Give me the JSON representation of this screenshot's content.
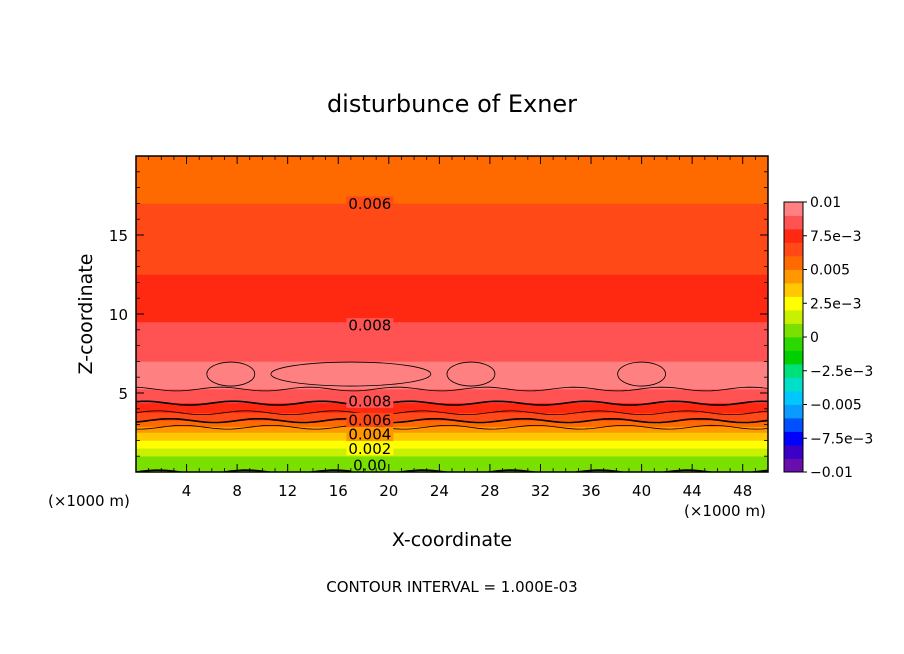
{
  "chart_data": {
    "type": "contour",
    "title": "disturbunce of Exner",
    "xlabel": "X-coordinate",
    "ylabel": "Z-coordinate",
    "x_unit": "(×1000 m)",
    "x_unit_right": "(×1000 m)",
    "xlim": [
      0,
      50
    ],
    "ylim": [
      0,
      20
    ],
    "x_ticks": [
      4,
      8,
      12,
      16,
      20,
      24,
      28,
      32,
      36,
      40,
      44,
      48
    ],
    "x_tick_labels": [
      "4",
      "8",
      "12",
      "16",
      "20",
      "24",
      "28",
      "32",
      "36",
      "40",
      "44",
      "48"
    ],
    "y_ticks": [
      5,
      10,
      15
    ],
    "y_tick_labels": [
      "5",
      "10",
      "15"
    ],
    "footer": "CONTOUR INTERVAL = 1.000E-03",
    "contour_interval": 0.001,
    "level_min": -0.01,
    "level_max": 0.01,
    "colorbar": {
      "tick_labels": [
        "0.01",
        "7.5e−3",
        "0.005",
        "2.5e−3",
        "0",
        "−2.5e−3",
        "−0.005",
        "−7.5e−3",
        "−0.01"
      ],
      "tick_values": [
        0.01,
        0.0075,
        0.005,
        0.0025,
        0,
        -0.0025,
        -0.005,
        -0.0075,
        -0.01
      ],
      "colors": [
        "#6a0dad",
        "#3a00c8",
        "#0000ff",
        "#0050ff",
        "#0a9bff",
        "#00c8ff",
        "#00e0c8",
        "#00e07a",
        "#00d000",
        "#2bd800",
        "#7ae000",
        "#c8f000",
        "#ffff00",
        "#ffc800",
        "#ff9800",
        "#ff6a00",
        "#ff4a18",
        "#ff2810",
        "#ff5252",
        "#ff8080"
      ]
    },
    "profile": [
      {
        "z": 0.0,
        "value": 0.0
      },
      {
        "z": 0.5,
        "value": 0.0002
      },
      {
        "z": 1.0,
        "value": 0.001
      },
      {
        "z": 1.5,
        "value": 0.002
      },
      {
        "z": 2.0,
        "value": 0.003
      },
      {
        "z": 2.5,
        "value": 0.004
      },
      {
        "z": 3.0,
        "value": 0.0055
      },
      {
        "z": 3.5,
        "value": 0.0065
      },
      {
        "z": 4.0,
        "value": 0.0075
      },
      {
        "z": 4.5,
        "value": 0.0082
      },
      {
        "z": 5.0,
        "value": 0.0089
      },
      {
        "z": 6.0,
        "value": 0.0093
      },
      {
        "z": 7.0,
        "value": 0.009
      },
      {
        "z": 8.0,
        "value": 0.0086
      },
      {
        "z": 9.5,
        "value": 0.008
      },
      {
        "z": 11.0,
        "value": 0.0076
      },
      {
        "z": 12.5,
        "value": 0.007
      },
      {
        "z": 14.5,
        "value": 0.0065
      },
      {
        "z": 17.0,
        "value": 0.006
      },
      {
        "z": 18.5,
        "value": 0.0055
      },
      {
        "z": 20.0,
        "value": 0.005
      }
    ],
    "labeled_contours": [
      {
        "label": "0.006",
        "value": 0.006,
        "z": 17.0,
        "label_x": 18.5
      },
      {
        "label": "0.008",
        "value": 0.008,
        "z": 9.3,
        "label_x": 18.5
      },
      {
        "label": "0.008",
        "value": 0.008,
        "z": 4.5,
        "label_x": 18.5
      },
      {
        "label": "0.006",
        "value": 0.006,
        "z": 3.3,
        "label_x": 18.5
      },
      {
        "label": "0.004",
        "value": 0.004,
        "z": 2.4,
        "label_x": 18.5
      },
      {
        "label": "0.002",
        "value": 0.002,
        "z": 1.5,
        "label_x": 18.5
      },
      {
        "label": "0.00",
        "value": 0.0,
        "z": 0.45,
        "label_x": 18.5
      }
    ],
    "maximum_cells": [
      {
        "value": 0.0093,
        "x_center": 7.5,
        "z_center": 6.2
      },
      {
        "value": 0.0093,
        "x_center": 17.0,
        "z_center": 6.2
      },
      {
        "value": 0.0093,
        "x_center": 26.5,
        "z_center": 6.2
      },
      {
        "value": 0.0093,
        "x_center": 40.0,
        "z_center": 6.2
      }
    ]
  }
}
